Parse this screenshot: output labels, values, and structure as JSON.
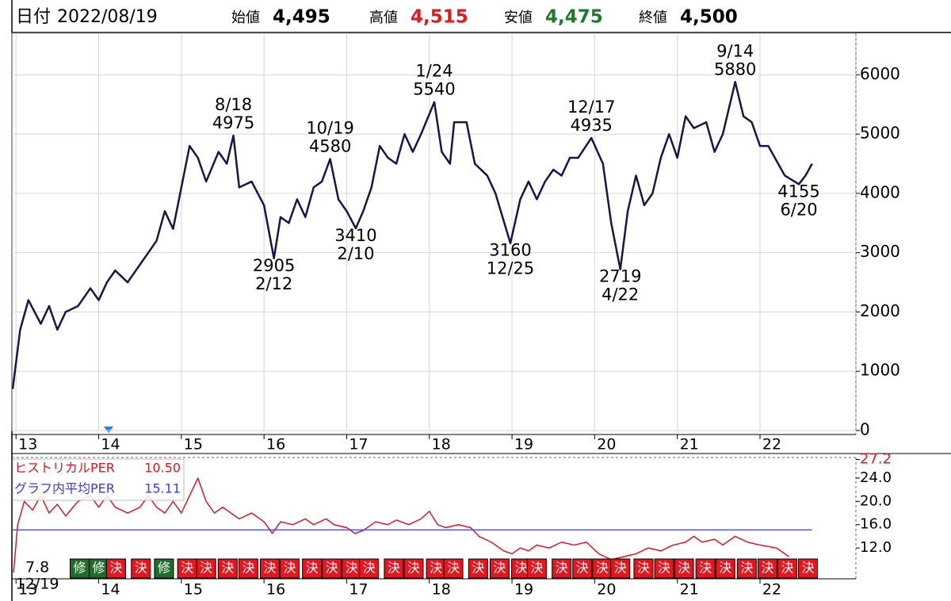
{
  "header": {
    "date_label": "日付",
    "date": "2022/08/19",
    "fields": [
      {
        "label": "始値",
        "value": "4,495",
        "color": "#000000"
      },
      {
        "label": "高値",
        "value": "4,515",
        "color": "#e8141e"
      },
      {
        "label": "安値",
        "value": "4,475",
        "color": "#1e7a2a"
      },
      {
        "label": "終値",
        "value": "4,500",
        "color": "#000000"
      }
    ]
  },
  "chart_data": [
    {
      "type": "line",
      "xlim": [
        12.95,
        23.16
      ],
      "xticks": [
        13,
        14,
        15,
        16,
        17,
        18,
        19,
        20,
        21,
        22
      ],
      "ylim": [
        0,
        6700
      ],
      "yticks": [
        0,
        1000,
        2000,
        3000,
        4000,
        5000,
        6000
      ],
      "grid": true,
      "series": [
        {
          "color": "#15154f",
          "x": [
            12.96,
            13.05,
            13.15,
            13.3,
            13.4,
            13.5,
            13.6,
            13.75,
            13.9,
            14.0,
            14.1,
            14.2,
            14.35,
            14.5,
            14.6,
            14.7,
            14.8,
            14.9,
            15.0,
            15.1,
            15.2,
            15.3,
            15.45,
            15.55,
            15.63,
            15.7,
            15.85,
            16.0,
            16.12,
            16.2,
            16.3,
            16.4,
            16.5,
            16.6,
            16.7,
            16.8,
            16.9,
            17.0,
            17.11,
            17.2,
            17.3,
            17.4,
            17.5,
            17.6,
            17.7,
            17.8,
            17.9,
            18.06,
            18.15,
            18.25,
            18.3,
            18.45,
            18.55,
            18.7,
            18.8,
            18.98,
            19.1,
            19.2,
            19.3,
            19.4,
            19.5,
            19.6,
            19.7,
            19.8,
            19.96,
            20.1,
            20.2,
            20.31,
            20.4,
            20.5,
            20.6,
            20.7,
            20.8,
            20.9,
            21.0,
            21.1,
            21.2,
            21.35,
            21.45,
            21.55,
            21.7,
            21.8,
            21.9,
            22.0,
            22.1,
            22.3,
            22.47,
            22.55,
            22.63
          ],
          "values": [
            700,
            1700,
            2200,
            1800,
            2100,
            1700,
            2000,
            2100,
            2400,
            2200,
            2500,
            2700,
            2500,
            2800,
            3000,
            3200,
            3700,
            3400,
            4100,
            4800,
            4600,
            4200,
            4700,
            4500,
            4975,
            4100,
            4200,
            3800,
            2905,
            3600,
            3500,
            3900,
            3600,
            4100,
            4200,
            4580,
            3900,
            3700,
            3410,
            3700,
            4100,
            4800,
            4600,
            4500,
            5000,
            4700,
            5000,
            5540,
            4700,
            4500,
            5200,
            5200,
            4500,
            4300,
            4000,
            3160,
            3900,
            4200,
            3900,
            4200,
            4400,
            4300,
            4600,
            4600,
            4935,
            4500,
            3500,
            2719,
            3700,
            4300,
            3800,
            4000,
            4600,
            5000,
            4600,
            5300,
            5100,
            5200,
            4700,
            5000,
            5880,
            5300,
            5200,
            4800,
            4800,
            4300,
            4155,
            4300,
            4500
          ]
        }
      ],
      "annotations": [
        {
          "date": "8/18",
          "value": 4975,
          "x": 15.63,
          "position": "above"
        },
        {
          "date": "10/19",
          "value": 4580,
          "x": 16.8,
          "position": "above"
        },
        {
          "date": "1/24",
          "value": 5540,
          "x": 18.06,
          "position": "above"
        },
        {
          "date": "12/17",
          "value": 4935,
          "x": 19.96,
          "position": "above"
        },
        {
          "date": "9/14",
          "value": 5880,
          "x": 21.7,
          "position": "above"
        },
        {
          "date": "2/12",
          "value": 2905,
          "x": 16.12,
          "position": "below"
        },
        {
          "date": "2/10",
          "value": 3410,
          "x": 17.11,
          "position": "below"
        },
        {
          "date": "12/25",
          "value": 3160,
          "x": 18.98,
          "position": "below"
        },
        {
          "date": "4/22",
          "value": 2719,
          "x": 20.31,
          "position": "below"
        },
        {
          "date": "6/20",
          "value": 4155,
          "x": 22.47,
          "position": "below"
        }
      ]
    },
    {
      "type": "line",
      "xlim": [
        12.95,
        23.16
      ],
      "xticks": [
        13,
        14,
        15,
        16,
        17,
        18,
        19,
        20,
        21,
        22
      ],
      "ylim": [
        6.7,
        27.2
      ],
      "yticks": [
        {
          "value": 27.2,
          "label": "27.2",
          "color": "#e8141e"
        },
        {
          "value": 24,
          "label": "24.0",
          "color": "#000000"
        },
        {
          "value": 20,
          "label": "20.0",
          "color": "#000000"
        },
        {
          "value": 16,
          "label": "16.0",
          "color": "#000000"
        },
        {
          "value": 12,
          "label": "12.0",
          "color": "#000000"
        }
      ],
      "series": [
        {
          "name": "ヒストリカルPER",
          "color": "#e8141e",
          "value": 10.5,
          "value_label": "10.50",
          "x": [
            12.97,
            13.02,
            13.1,
            13.2,
            13.3,
            13.4,
            13.5,
            13.6,
            13.75,
            13.9,
            14.0,
            14.1,
            14.2,
            14.35,
            14.5,
            14.6,
            14.7,
            14.8,
            14.9,
            15.0,
            15.1,
            15.2,
            15.3,
            15.4,
            15.5,
            15.6,
            15.7,
            15.85,
            16.0,
            16.1,
            16.2,
            16.35,
            16.5,
            16.6,
            16.75,
            16.85,
            17.0,
            17.1,
            17.2,
            17.35,
            17.5,
            17.6,
            17.75,
            17.9,
            18.0,
            18.1,
            18.2,
            18.35,
            18.5,
            18.6,
            18.75,
            18.9,
            19.0,
            19.1,
            19.2,
            19.3,
            19.45,
            19.6,
            19.75,
            19.9,
            20.05,
            20.2,
            20.35,
            20.5,
            20.65,
            20.8,
            20.95,
            21.1,
            21.2,
            21.3,
            21.45,
            21.55,
            21.7,
            21.85,
            22.0,
            22.2,
            22.35
          ],
          "values": [
            7.8,
            16,
            20,
            18.5,
            21,
            18,
            19.5,
            17.5,
            20,
            21,
            19,
            21,
            19,
            18,
            19,
            21,
            19,
            18,
            20,
            18,
            21,
            24,
            20,
            18,
            19,
            18,
            17,
            18,
            16.5,
            14.5,
            16.5,
            16,
            17,
            16,
            17,
            16,
            15.5,
            14.5,
            15,
            16.5,
            16,
            16.8,
            16,
            17,
            18.3,
            16,
            15.5,
            16,
            15.5,
            14,
            13,
            11.5,
            11,
            12,
            11.5,
            12.5,
            12,
            13,
            12.5,
            13,
            11,
            10,
            10.5,
            11,
            12,
            11.5,
            12.5,
            13,
            14,
            13,
            13.5,
            12.5,
            14,
            13,
            12.5,
            12,
            10.5
          ]
        },
        {
          "name": "グラフ内平均PER",
          "color": "#3a3aff",
          "value": 15.11
        }
      ],
      "annotations": [
        {
          "value": 7.8,
          "date": "12/19",
          "x": 12.97
        }
      ],
      "events": [
        {
          "label": "修",
          "x": 13.77,
          "color": "#1e6e2a"
        },
        {
          "label": "修",
          "x": 14.0,
          "color": "#1e6e2a"
        },
        {
          "label": "決",
          "x": 14.21,
          "color": "#e8141e"
        },
        {
          "label": "決",
          "x": 14.51,
          "color": "#e8141e"
        },
        {
          "label": "修",
          "x": 14.79,
          "color": "#1e6e2a"
        },
        {
          "label": "決",
          "x": 15.07,
          "color": "#e8141e"
        },
        {
          "label": "決",
          "x": 15.3,
          "color": "#e8141e"
        },
        {
          "label": "決",
          "x": 15.56,
          "color": "#e8141e"
        },
        {
          "label": "決",
          "x": 15.81,
          "color": "#e8141e"
        },
        {
          "label": "決",
          "x": 16.07,
          "color": "#e8141e"
        },
        {
          "label": "決",
          "x": 16.31,
          "color": "#e8141e"
        },
        {
          "label": "決",
          "x": 16.58,
          "color": "#e8141e"
        },
        {
          "label": "決",
          "x": 16.82,
          "color": "#e8141e"
        },
        {
          "label": "決",
          "x": 17.06,
          "color": "#e8141e"
        },
        {
          "label": "決",
          "x": 17.27,
          "color": "#e8141e"
        },
        {
          "label": "決",
          "x": 17.57,
          "color": "#e8141e"
        },
        {
          "label": "決",
          "x": 17.81,
          "color": "#e8141e"
        },
        {
          "label": "決",
          "x": 18.08,
          "color": "#e8141e"
        },
        {
          "label": "決",
          "x": 18.29,
          "color": "#e8141e"
        },
        {
          "label": "決",
          "x": 18.59,
          "color": "#e8141e"
        },
        {
          "label": "決",
          "x": 18.85,
          "color": "#e8141e"
        },
        {
          "label": "決",
          "x": 19.11,
          "color": "#e8141e"
        },
        {
          "label": "決",
          "x": 19.3,
          "color": "#e8141e"
        },
        {
          "label": "決",
          "x": 19.6,
          "color": "#e8141e"
        },
        {
          "label": "決",
          "x": 19.85,
          "color": "#e8141e"
        },
        {
          "label": "決",
          "x": 20.09,
          "color": "#e8141e"
        },
        {
          "label": "決",
          "x": 20.31,
          "color": "#e8141e"
        },
        {
          "label": "決",
          "x": 20.59,
          "color": "#e8141e"
        },
        {
          "label": "決",
          "x": 20.84,
          "color": "#e8141e"
        },
        {
          "label": "決",
          "x": 21.08,
          "color": "#e8141e"
        },
        {
          "label": "決",
          "x": 21.34,
          "color": "#e8141e"
        },
        {
          "label": "決",
          "x": 21.58,
          "color": "#e8141e"
        },
        {
          "label": "決",
          "x": 21.84,
          "color": "#e8141e"
        },
        {
          "label": "決",
          "x": 22.09,
          "color": "#e8141e"
        },
        {
          "label": "決",
          "x": 22.33,
          "color": "#e8141e"
        },
        {
          "label": "決",
          "x": 22.58,
          "color": "#e8141e"
        }
      ]
    }
  ]
}
